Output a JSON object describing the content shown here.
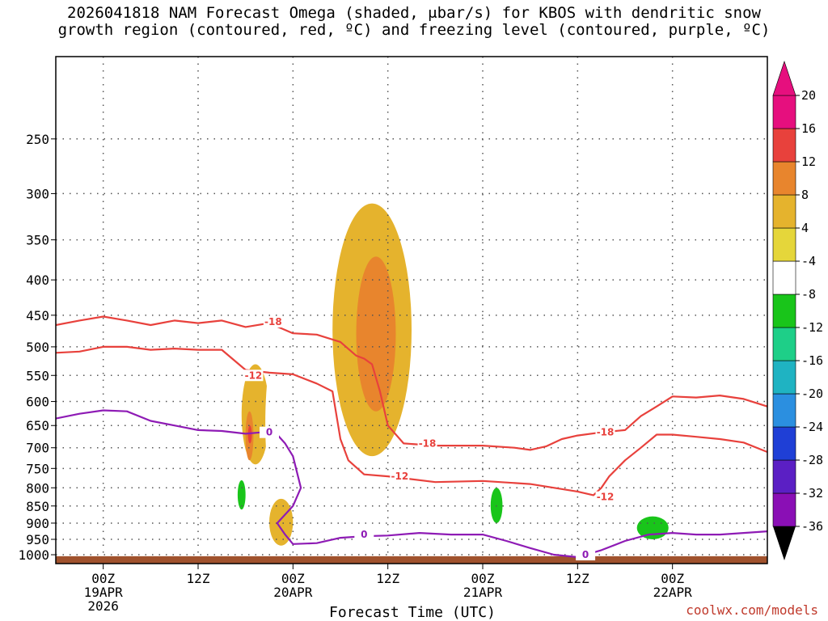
{
  "title": {
    "line1": "2026041818 NAM Forecast Omega (shaded, μbar/s) for KBOS with dendritic snow",
    "line2": "growth region (contoured, red, ºC) and freezing level (contoured, purple, ºC)"
  },
  "watermark": "coolwx.com/models",
  "colors": {
    "dgz_contour": "#e8413c",
    "freezing_contour": "#8e1bb5",
    "terrain": "#a0522d",
    "grid": "#555555"
  },
  "chart_data": {
    "type": "heatmap",
    "xlabel": "Forecast Time (UTC)",
    "ylabel": "",
    "x_range_hours": [
      -6,
      84
    ],
    "y_range_hPa": [
      1030,
      190
    ],
    "y_scale": "log",
    "y_ticks": [
      250,
      300,
      350,
      400,
      450,
      500,
      550,
      600,
      650,
      700,
      750,
      800,
      850,
      900,
      950,
      1000
    ],
    "x_ticks": [
      {
        "hour": 0,
        "line1": "00Z",
        "line2": "19APR",
        "line3": "2026"
      },
      {
        "hour": 12,
        "line1": "12Z",
        "line2": "",
        "line3": ""
      },
      {
        "hour": 24,
        "line1": "00Z",
        "line2": "20APR",
        "line3": ""
      },
      {
        "hour": 36,
        "line1": "12Z",
        "line2": "",
        "line3": ""
      },
      {
        "hour": 48,
        "line1": "00Z",
        "line2": "21APR",
        "line3": ""
      },
      {
        "hour": 60,
        "line1": "12Z",
        "line2": "",
        "line3": ""
      },
      {
        "hour": 72,
        "line1": "00Z",
        "line2": "22APR",
        "line3": ""
      }
    ],
    "colorbar": {
      "levels": [
        -36,
        -32,
        -28,
        -24,
        -20,
        -16,
        -12,
        -8,
        -4,
        4,
        8,
        12,
        16,
        20
      ],
      "colors": [
        "#a6a6a6",
        "#8a0fb5",
        "#5b1fc4",
        "#1f3fd6",
        "#2b8fe0",
        "#1fb3c2",
        "#1ecf88",
        "#19c51a",
        "#ffffff",
        "#e5d63a",
        "#e5b32d",
        "#e8852d",
        "#e8413c",
        "#e60f7e"
      ],
      "underflow_color": "#000000",
      "overflow_color": "#e60f7e"
    },
    "omega_regions": [
      {
        "category": "-8 to -4",
        "hour_range": [
          6,
          15
        ],
        "p_range_hPa": [
          660,
          920
        ]
      },
      {
        "category": "-8 to -4",
        "hour_range": [
          15,
          18
        ],
        "p_range_hPa": [
          480,
          940
        ]
      },
      {
        "category": "-12 to -8",
        "hour_range": [
          17,
          18
        ],
        "p_range_hPa": [
          780,
          860
        ]
      },
      {
        "category": "4 to 8",
        "hour_range": [
          17.5,
          21
        ],
        "p_range_hPa": [
          530,
          740
        ]
      },
      {
        "category": "8 to 12",
        "hour_range": [
          18,
          19
        ],
        "p_range_hPa": [
          620,
          730
        ]
      },
      {
        "category": "12 to 16",
        "hour_range": [
          18.3,
          18.8
        ],
        "p_range_hPa": [
          650,
          690
        ]
      },
      {
        "category": "-8 to -4",
        "hour_range": [
          20.5,
          24
        ],
        "p_range_hPa": [
          490,
          850
        ]
      },
      {
        "category": "4 to 8",
        "hour_range": [
          21,
          24
        ],
        "p_range_hPa": [
          830,
          970
        ]
      },
      {
        "category": "-8 to -4",
        "hour_range": [
          23,
          23.7
        ],
        "p_range_hPa": [
          200,
          250
        ]
      },
      {
        "category": "-8 to -4",
        "hour_range": [
          26,
          26.3
        ],
        "p_range_hPa": [
          260,
          280
        ]
      },
      {
        "category": "-8 to -4",
        "hour_range": [
          24.8,
          25.2
        ],
        "p_range_hPa": [
          320,
          350
        ]
      },
      {
        "category": "-8 to -4",
        "hour_range": [
          14,
          14.6
        ],
        "p_range_hPa": [
          380,
          450
        ]
      },
      {
        "category": "4 to 8",
        "hour_range": [
          29,
          39
        ],
        "p_range_hPa": [
          310,
          720
        ]
      },
      {
        "category": "8 to 12",
        "hour_range": [
          32,
          37
        ],
        "p_range_hPa": [
          370,
          620
        ]
      },
      {
        "category": "-8 to -4",
        "hour_range": [
          43,
          51
        ],
        "p_range_hPa": [
          760,
          930
        ]
      },
      {
        "category": "-12 to -8",
        "hour_range": [
          49,
          50.5
        ],
        "p_range_hPa": [
          800,
          900
        ]
      },
      {
        "category": "-8 to -4",
        "hour_range": [
          66,
          74
        ],
        "p_range_hPa": [
          840,
          970
        ]
      },
      {
        "category": "-12 to -8",
        "hour_range": [
          67.5,
          71.5
        ],
        "p_range_hPa": [
          880,
          950
        ]
      },
      {
        "category": "-8 to -4",
        "hour_range": [
          78,
          79.5
        ],
        "p_range_hPa": [
          480,
          610
        ]
      }
    ],
    "contour_labels": [
      {
        "text": "-18",
        "hour": 21.5,
        "p_hPa": 460,
        "series": "dgz"
      },
      {
        "text": "-12",
        "hour": 19,
        "p_hPa": 550,
        "series": "dgz"
      },
      {
        "text": "-18",
        "hour": 41,
        "p_hPa": 690,
        "series": "dgz"
      },
      {
        "text": "-12",
        "hour": 37.5,
        "p_hPa": 770,
        "series": "dgz"
      },
      {
        "text": "-18",
        "hour": 63.5,
        "p_hPa": 665,
        "series": "dgz"
      },
      {
        "text": "-12",
        "hour": 63.5,
        "p_hPa": 825,
        "series": "dgz"
      },
      {
        "text": "0",
        "hour": 21,
        "p_hPa": 665,
        "series": "freezing"
      },
      {
        "text": "0",
        "hour": 33,
        "p_hPa": 935,
        "series": "freezing"
      },
      {
        "text": "0",
        "hour": 61,
        "p_hPa": 1000,
        "series": "freezing"
      }
    ],
    "series": [
      {
        "name": "-18",
        "kind": "dgz",
        "points": [
          [
            -6,
            465
          ],
          [
            -3,
            458
          ],
          [
            0,
            452
          ],
          [
            3,
            458
          ],
          [
            6,
            465
          ],
          [
            9,
            458
          ],
          [
            12,
            462
          ],
          [
            15,
            458
          ],
          [
            18,
            468
          ],
          [
            21,
            462
          ],
          [
            24,
            478
          ],
          [
            27,
            480
          ],
          [
            30,
            492
          ],
          [
            32,
            515
          ],
          [
            33,
            520
          ],
          [
            34,
            530
          ],
          [
            35,
            580
          ],
          [
            36,
            650
          ],
          [
            38,
            690
          ],
          [
            42,
            695
          ],
          [
            48,
            695
          ],
          [
            52,
            700
          ],
          [
            54,
            705
          ],
          [
            56,
            697
          ],
          [
            58,
            680
          ],
          [
            60,
            672
          ],
          [
            63,
            665
          ],
          [
            66,
            660
          ],
          [
            68,
            630
          ],
          [
            70,
            610
          ],
          [
            72,
            590
          ],
          [
            75,
            592
          ],
          [
            78,
            588
          ],
          [
            81,
            595
          ],
          [
            84,
            610
          ]
        ]
      },
      {
        "name": "-12",
        "kind": "dgz",
        "points": [
          [
            -6,
            510
          ],
          [
            -3,
            508
          ],
          [
            0,
            500
          ],
          [
            3,
            500
          ],
          [
            6,
            505
          ],
          [
            9,
            503
          ],
          [
            12,
            505
          ],
          [
            15,
            505
          ],
          [
            18,
            540
          ],
          [
            21,
            545
          ],
          [
            24,
            548
          ],
          [
            27,
            565
          ],
          [
            29,
            580
          ],
          [
            30,
            680
          ],
          [
            31,
            730
          ],
          [
            33,
            765
          ],
          [
            36,
            770
          ],
          [
            42,
            785
          ],
          [
            48,
            782
          ],
          [
            54,
            790
          ],
          [
            60,
            810
          ],
          [
            62,
            820
          ],
          [
            63,
            800
          ],
          [
            64,
            770
          ],
          [
            66,
            730
          ],
          [
            68,
            700
          ],
          [
            70,
            670
          ],
          [
            72,
            670
          ],
          [
            75,
            675
          ],
          [
            78,
            680
          ],
          [
            81,
            688
          ],
          [
            84,
            710
          ]
        ]
      },
      {
        "name": "0",
        "kind": "freezing",
        "points": [
          [
            -6,
            635
          ],
          [
            -3,
            625
          ],
          [
            0,
            618
          ],
          [
            3,
            620
          ],
          [
            6,
            640
          ],
          [
            9,
            650
          ],
          [
            12,
            660
          ],
          [
            15,
            662
          ],
          [
            18,
            668
          ],
          [
            20,
            665
          ],
          [
            22,
            670
          ],
          [
            23,
            690
          ],
          [
            24,
            720
          ],
          [
            25,
            800
          ],
          [
            24,
            850
          ],
          [
            22,
            900
          ],
          [
            23,
            935
          ],
          [
            24,
            965
          ],
          [
            27,
            962
          ],
          [
            30,
            945
          ],
          [
            33,
            940
          ],
          [
            36,
            938
          ],
          [
            40,
            930
          ],
          [
            44,
            935
          ],
          [
            48,
            935
          ],
          [
            51,
            955
          ],
          [
            54,
            978
          ],
          [
            57,
            1000
          ],
          [
            60,
            1008
          ],
          [
            63,
            985
          ],
          [
            66,
            955
          ],
          [
            69,
            935
          ],
          [
            72,
            930
          ],
          [
            75,
            935
          ],
          [
            78,
            935
          ],
          [
            81,
            930
          ],
          [
            84,
            925
          ]
        ]
      }
    ]
  }
}
